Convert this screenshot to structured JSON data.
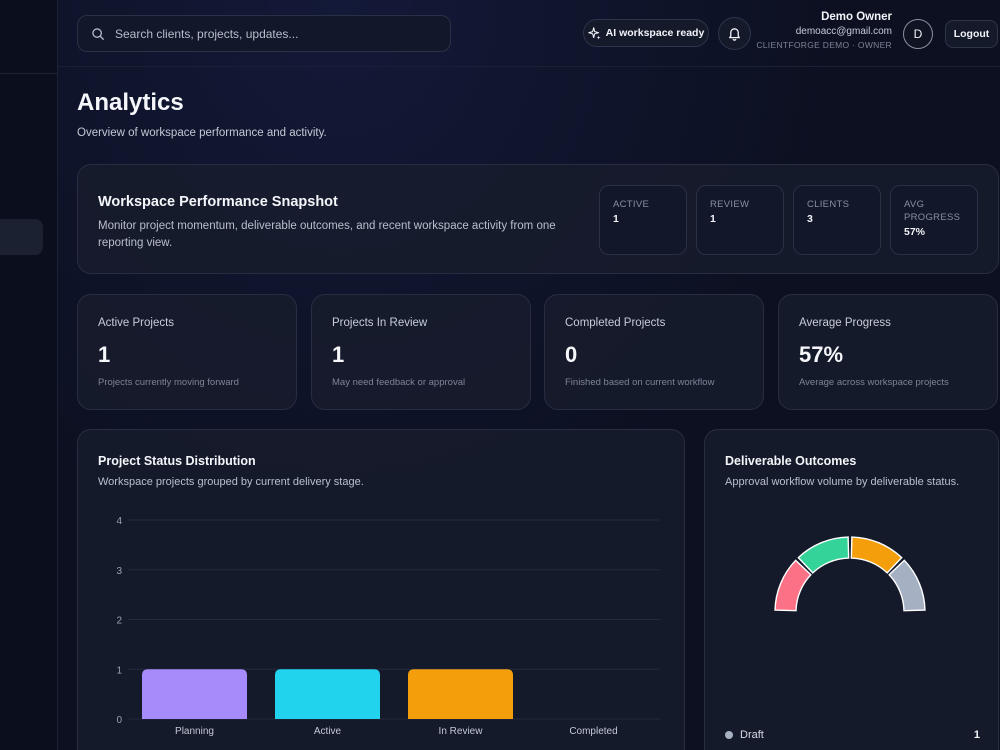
{
  "search": {
    "placeholder": "Search clients, projects, updates..."
  },
  "header": {
    "ai_status": "AI workspace ready",
    "user_name": "Demo Owner",
    "user_email": "demoacc@gmail.com",
    "org_label": "CLIENTFORGE DEMO · OWNER",
    "avatar_initial": "D",
    "logout_label": "Logout"
  },
  "page": {
    "title": "Analytics",
    "subtitle": "Overview of workspace performance and activity."
  },
  "snapshot": {
    "title": "Workspace Performance Snapshot",
    "description": "Monitor project momentum, deliverable outcomes, and recent workspace activity from one reporting view.",
    "metrics": [
      {
        "label": "ACTIVE",
        "value": "1"
      },
      {
        "label": "REVIEW",
        "value": "1"
      },
      {
        "label": "CLIENTS",
        "value": "3"
      },
      {
        "label": "AVG PROGRESS",
        "value": "57%"
      }
    ]
  },
  "stats": [
    {
      "label": "Active Projects",
      "value": "1",
      "hint": "Projects currently moving forward"
    },
    {
      "label": "Projects In Review",
      "value": "1",
      "hint": "May need feedback or approval"
    },
    {
      "label": "Completed Projects",
      "value": "0",
      "hint": "Finished based on current workflow"
    },
    {
      "label": "Average Progress",
      "value": "57%",
      "hint": "Average across workspace projects"
    }
  ],
  "status_chart": {
    "title": "Project Status Distribution",
    "subtitle": "Workspace projects grouped by current delivery stage."
  },
  "outcomes_chart": {
    "title": "Deliverable Outcomes",
    "subtitle": "Approval workflow volume by deliverable status.",
    "legend": [
      {
        "label": "Draft",
        "count": "1"
      }
    ]
  },
  "chart_data": [
    {
      "type": "bar",
      "title": "Project Status Distribution",
      "categories": [
        "Planning",
        "Active",
        "In Review",
        "Completed"
      ],
      "values": [
        1,
        1,
        1,
        0
      ],
      "colors": [
        "#a78bfa",
        "#22d3ee",
        "#f59e0b",
        "#64748b"
      ],
      "ylim": [
        0,
        4
      ],
      "yticks": [
        "0",
        "1",
        "2",
        "3",
        "4"
      ],
      "grid": true
    },
    {
      "type": "pie",
      "title": "Deliverable Outcomes",
      "segments": [
        {
          "value": 1,
          "color": "#fb7185"
        },
        {
          "value": 1,
          "color": "#34d399"
        },
        {
          "value": 1,
          "color": "#f59e0b"
        },
        {
          "label": "Draft",
          "value": 1,
          "color": "#a6b0c3"
        }
      ]
    }
  ]
}
